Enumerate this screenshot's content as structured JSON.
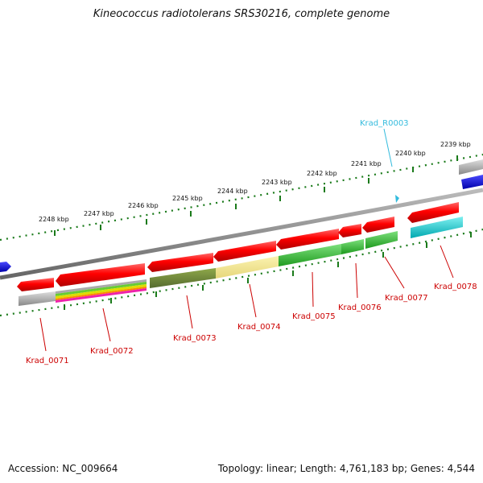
{
  "title": "Kineococcus radiotolerans SRS30216, complete genome",
  "accession_text": "Accession: NC_009664",
  "summary_text": "Topology: linear; Length: 4,761,183 bp; Genes: 4,544",
  "scale_labels": [
    "2248 kbp",
    "2247 kbp",
    "2246 kbp",
    "2245 kbp",
    "2244 kbp",
    "2243 kbp",
    "2242 kbp",
    "2241 kbp",
    "2240 kbp",
    "2239 kbp"
  ],
  "gene_labels": [
    "Krad_0071",
    "Krad_0072",
    "Krad_0073",
    "Krad_0074",
    "Krad_0075",
    "Krad_0076",
    "Krad_0077",
    "Krad_0078"
  ],
  "rna_label": "Krad_R0003",
  "colors": {
    "cds": "#ff0000",
    "backbone": "#888888",
    "blue_feature": "#0000ee",
    "rna": "#33bbdd",
    "green": "#33cc33",
    "olive": "#6b8e23",
    "khaki": "#f0e68c",
    "cyan": "#00cccc",
    "gray": "#aaaaaa",
    "tick": "#1a7a1a"
  }
}
